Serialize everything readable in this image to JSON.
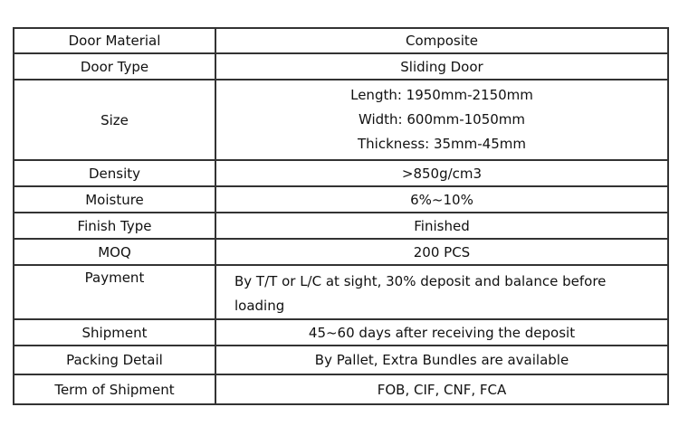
{
  "rows": [
    {
      "label": "Door Material",
      "value": "Composite"
    },
    {
      "label": "Door Type",
      "value": "Sliding Door"
    },
    {
      "label": "Size",
      "lines": [
        "Length: 1950mm-2150mm",
        "Width: 600mm-1050mm",
        "Thickness: 35mm-45mm"
      ]
    },
    {
      "label": "Density",
      "value": ">850g/cm3"
    },
    {
      "label": "Moisture",
      "value": "6%~10%"
    },
    {
      "label": "Finish Type",
      "value": "Finished"
    },
    {
      "label": "MOQ",
      "value": "200 PCS"
    },
    {
      "label": "Payment",
      "value": "By T/T or L/C at sight, 30% deposit and balance before loading"
    },
    {
      "label": "Shipment",
      "value": "45~60 days after receiving the deposit"
    },
    {
      "label": "Packing Detail",
      "value": "By Pallet, Extra Bundles are available"
    },
    {
      "label": "Term of Shipment",
      "value": "FOB, CIF, CNF, FCA"
    }
  ]
}
